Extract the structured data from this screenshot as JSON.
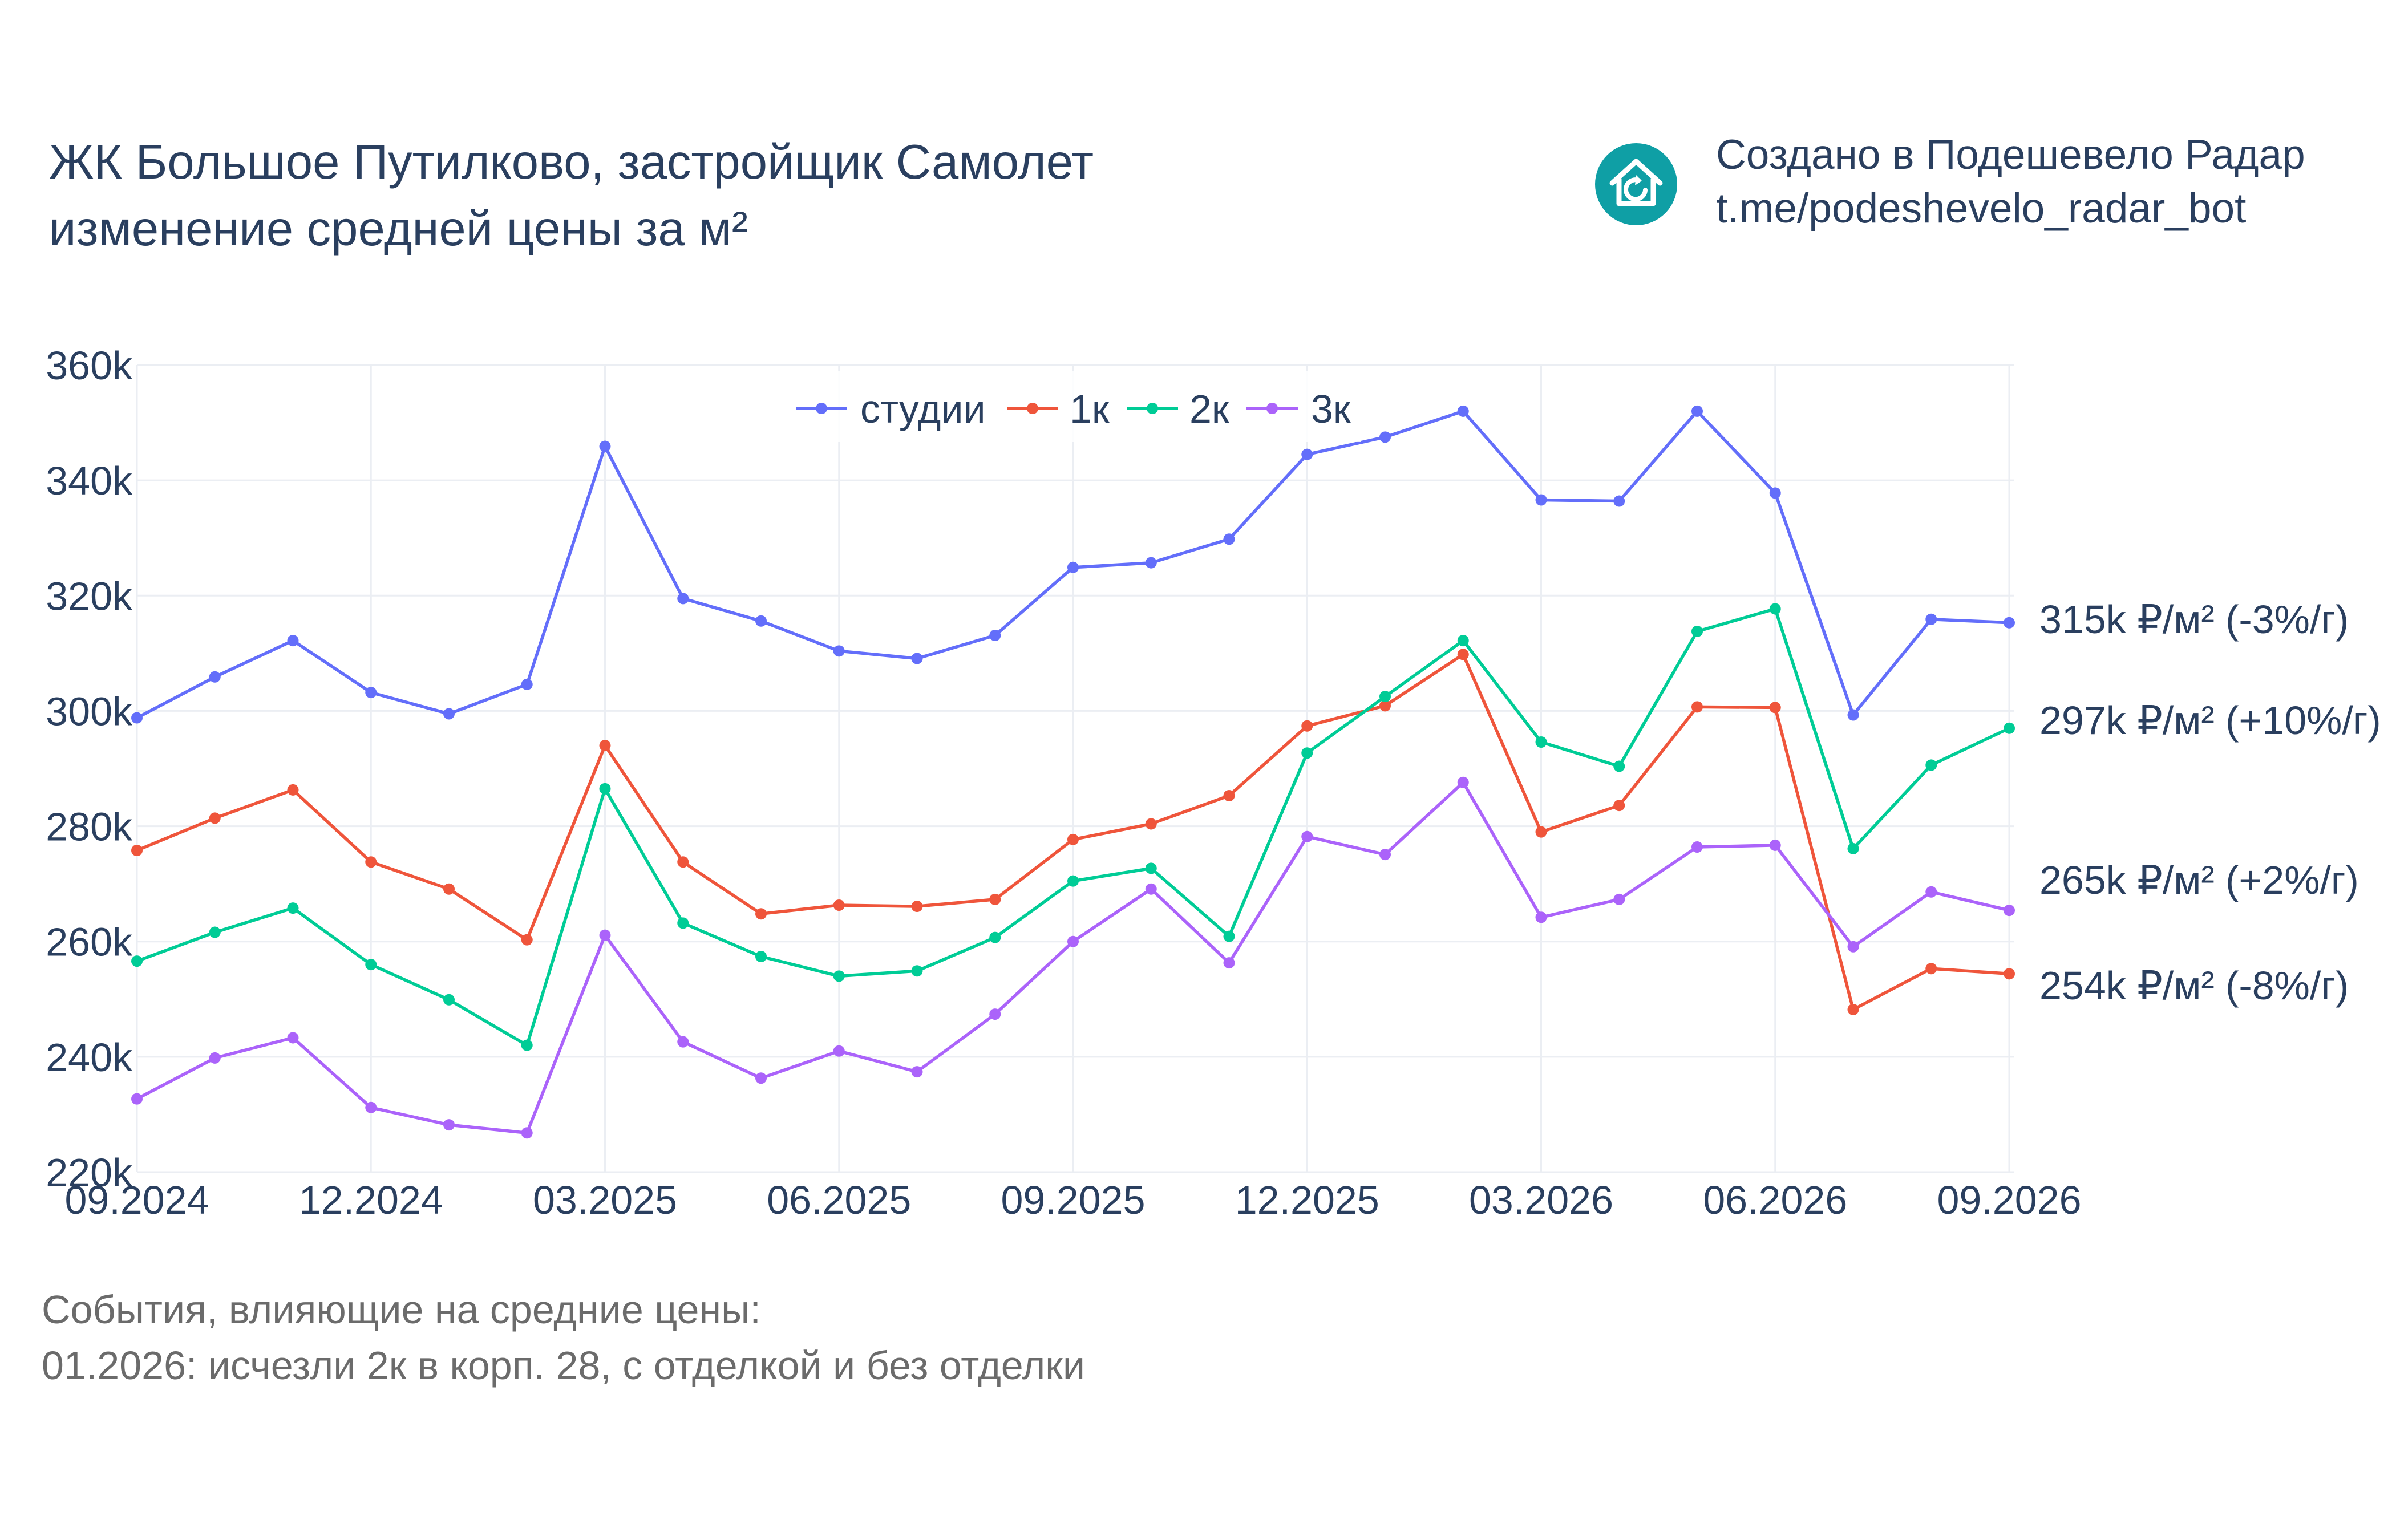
{
  "title": {
    "line1": "ЖК Большое Путилково, застройщик Самолет",
    "line2": "изменение средней цены за м²"
  },
  "credit": {
    "line1": "Создано в Подешевело Радар",
    "line2": "t.me/podeshevelo_radar_bot",
    "logo_icon": "house-refresh-icon",
    "logo_color": "#0f9fa5"
  },
  "notes": {
    "line1": "События, влияющие на средние цены:",
    "line2": "01.2026: исчезли 2к в корп. 28, с отделкой и без отделки"
  },
  "colors": {
    "studii": "#636efa",
    "k1": "#ef553b",
    "k2": "#00cc96",
    "k3": "#ab63fa",
    "text": "#2a3f5f",
    "grid": "#ebeef3"
  },
  "chart_data": {
    "type": "line",
    "x": [
      "09.2024",
      "10.2024",
      "11.2024",
      "12.2024",
      "01.2025",
      "02.2025",
      "03.2025",
      "04.2025",
      "05.2025",
      "06.2025",
      "07.2025",
      "08.2025",
      "09.2025",
      "10.2025",
      "11.2025",
      "12.2025",
      "01.2026",
      "02.2026",
      "03.2026",
      "04.2026",
      "05.2026",
      "06.2026",
      "07.2026",
      "08.2026",
      "09.2026"
    ],
    "x_ticks": [
      "09.2024",
      "12.2024",
      "03.2025",
      "06.2025",
      "09.2025",
      "12.2025",
      "03.2026",
      "06.2026",
      "09.2026"
    ],
    "y_ticks": [
      220000,
      240000,
      260000,
      280000,
      300000,
      320000,
      340000,
      360000
    ],
    "y_tick_labels": [
      "220k",
      "240k",
      "260k",
      "280k",
      "300k",
      "320k",
      "340k",
      "360k"
    ],
    "ylim": [
      220000,
      360000
    ],
    "grid": true,
    "legend_position": "top-center",
    "series": [
      {
        "name": "студии",
        "color": "#636efa",
        "values": [
          298800,
          305900,
          312200,
          303200,
          299500,
          304600,
          345900,
          319500,
          315600,
          310400,
          309100,
          313100,
          324900,
          325700,
          329800,
          344500,
          347500,
          352000,
          336600,
          336400,
          352000,
          337800,
          299300,
          315900,
          315300
        ],
        "end_label": "315k ₽/м² (-3%/г)"
      },
      {
        "name": "1к",
        "color": "#ef553b",
        "values": [
          275800,
          281400,
          286300,
          273800,
          269100,
          260300,
          294000,
          273800,
          264800,
          266300,
          266100,
          267300,
          277700,
          280400,
          285300,
          297400,
          300900,
          309800,
          279000,
          283600,
          300700,
          300600,
          248200,
          255300,
          254400
        ],
        "end_label": "254k ₽/м² (-8%/г)"
      },
      {
        "name": "2к",
        "color": "#00cc96",
        "values": [
          256600,
          261600,
          265800,
          256000,
          249900,
          242000,
          286500,
          263200,
          257400,
          254000,
          254900,
          260700,
          270500,
          272700,
          260900,
          292700,
          302500,
          312200,
          294600,
          290400,
          313800,
          317700,
          276100,
          290600,
          297000
        ],
        "end_label": "297k ₽/м² (+10%/г)"
      },
      {
        "name": "3к",
        "color": "#ab63fa",
        "values": [
          232700,
          239800,
          243300,
          231200,
          228200,
          226800,
          261100,
          242600,
          236300,
          241000,
          237400,
          247400,
          260000,
          269100,
          256300,
          278200,
          275100,
          287600,
          264200,
          267300,
          276400,
          276700,
          259100,
          268600,
          265400
        ],
        "end_label": "265k ₽/м² (+2%/г)"
      }
    ]
  }
}
